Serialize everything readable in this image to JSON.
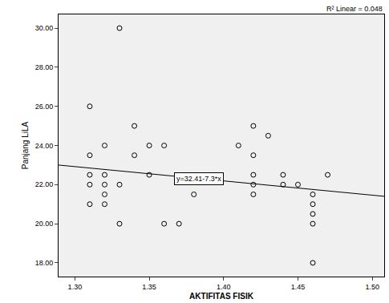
{
  "chart_data": {
    "type": "scatter",
    "x_label": "AKTIFITAS FISIK",
    "y_label": "Panjang LiLA",
    "marker": "open_circle",
    "color": "#000000",
    "x": [
      1.31,
      1.31,
      1.31,
      1.31,
      1.31,
      1.32,
      1.32,
      1.32,
      1.32,
      1.32,
      1.33,
      1.33,
      1.33,
      1.34,
      1.34,
      1.35,
      1.35,
      1.36,
      1.36,
      1.37,
      1.38,
      1.41,
      1.42,
      1.42,
      1.42,
      1.42,
      1.42,
      1.43,
      1.44,
      1.44,
      1.45,
      1.46,
      1.46,
      1.46,
      1.46,
      1.46,
      1.47
    ],
    "values": [
      26.0,
      23.5,
      22.5,
      22.0,
      21.0,
      24.0,
      22.5,
      22.0,
      21.5,
      21.0,
      30.0,
      22.0,
      20.0,
      25.0,
      23.5,
      24.0,
      22.5,
      24.0,
      20.0,
      20.0,
      21.5,
      24.0,
      25.0,
      23.5,
      22.5,
      22.0,
      21.5,
      24.5,
      22.5,
      22.0,
      22.0,
      21.5,
      21.0,
      20.5,
      20.0,
      18.0,
      22.5
    ],
    "fit_line": {
      "intercept": 32.41,
      "slope": -7.3,
      "label": "y=32.41-7.3*x",
      "r2_label": "R² Linear = 0.048"
    },
    "xlim": [
      1.289,
      1.508
    ],
    "ylim": [
      17.3,
      30.7
    ],
    "xticks": [
      {
        "value": 1.3,
        "label": "1.30"
      },
      {
        "value": 1.35,
        "label": "1.35"
      },
      {
        "value": 1.4,
        "label": "1.40"
      },
      {
        "value": 1.45,
        "label": "1.45"
      },
      {
        "value": 1.5,
        "label": "1.50"
      }
    ],
    "yticks": [
      {
        "value": 18,
        "label": "18.00"
      },
      {
        "value": 20,
        "label": "20.00"
      },
      {
        "value": 22,
        "label": "22.00"
      },
      {
        "value": 24,
        "label": "24.00"
      },
      {
        "value": 26,
        "label": "26.00"
      },
      {
        "value": 28,
        "label": "28.00"
      },
      {
        "value": 30,
        "label": "30.00"
      }
    ],
    "grid": false
  }
}
